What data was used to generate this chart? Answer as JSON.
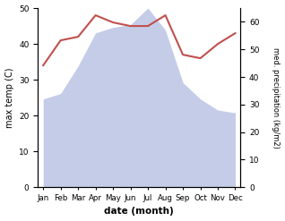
{
  "months": [
    "Jan",
    "Feb",
    "Mar",
    "Apr",
    "May",
    "Jun",
    "Jul",
    "Aug",
    "Sep",
    "Oct",
    "Nov",
    "Dec"
  ],
  "temperature": [
    34,
    41,
    42,
    48,
    46,
    45,
    45,
    48,
    37,
    36,
    40,
    43
  ],
  "precipitation": [
    32,
    34,
    44,
    56,
    58,
    59,
    65,
    57,
    38,
    32,
    28,
    27
  ],
  "temp_ylim": [
    0,
    50
  ],
  "precip_ylim": [
    0,
    65
  ],
  "temp_color": "#c0504d",
  "precip_fill_color": "#c5cce8",
  "xlabel": "date (month)",
  "ylabel_left": "max temp (C)",
  "ylabel_right": "med. precipitation (kg/m2)",
  "temp_yticks": [
    0,
    10,
    20,
    30,
    40,
    50
  ],
  "precip_yticks": [
    0,
    10,
    20,
    30,
    40,
    50,
    60
  ]
}
